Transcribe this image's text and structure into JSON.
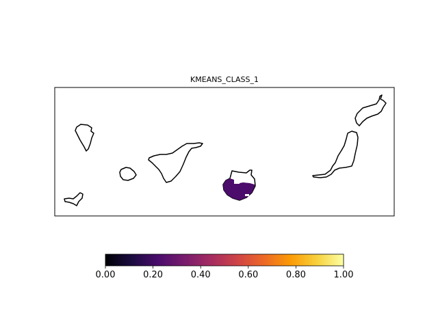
{
  "map": {
    "title": "KMEANS_CLASS_1",
    "fill_value": 0.2,
    "filled_island": "gran-canaria"
  },
  "colorbar": {
    "colormap": "inferno",
    "min": 0.0,
    "max": 1.0,
    "ticks": [
      "0.00",
      "0.20",
      "0.40",
      "0.60",
      "0.80",
      "1.00"
    ],
    "stops": [
      "#000004",
      "#1b0c41",
      "#4a0c6b",
      "#781c6d",
      "#a52c60",
      "#cf4446",
      "#ed6925",
      "#fb9b06",
      "#f7d13d",
      "#fcffa4"
    ]
  },
  "colors": {
    "fill": "#4b0c6b",
    "coastline": "#000000",
    "frame": "#000000"
  }
}
